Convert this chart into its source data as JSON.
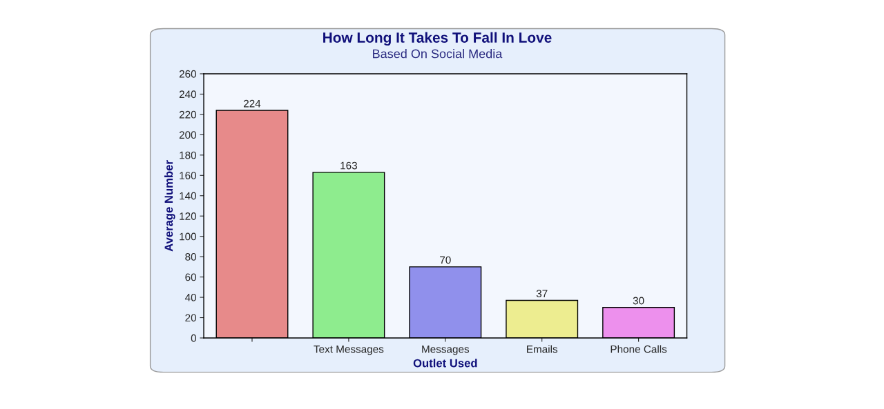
{
  "chart_data": {
    "type": "bar",
    "title": "How Long It Takes To Fall In Love",
    "subtitle": "Based On Social Media",
    "xlabel": "Outlet Used",
    "ylabel": "Average Number",
    "categories": [
      null,
      "Text Messages",
      "Messages",
      "Emails",
      "Phone Calls"
    ],
    "values": [
      224,
      163,
      70,
      37,
      30
    ],
    "colors": [
      "#f77a7a",
      "#7efc7e",
      "#8080fc",
      "#fdfd80",
      "#fd80fd"
    ],
    "ylim": [
      0,
      260
    ],
    "yticks": [
      0,
      20,
      40,
      60,
      80,
      100,
      120,
      140,
      160,
      180,
      200,
      220,
      240,
      260
    ],
    "data_labels": true,
    "grid": false,
    "legend": false
  }
}
